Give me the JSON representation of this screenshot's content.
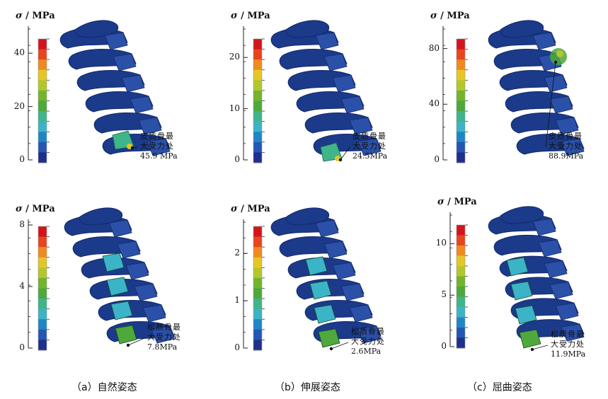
{
  "axis_label_prefix": "σ",
  "axis_label_unit": "/ MPa",
  "colors": {
    "colorbar": [
      "#1f2f8c",
      "#2356b5",
      "#1f86c6",
      "#3bb4c8",
      "#3fb58a",
      "#4ea83c",
      "#72b52b",
      "#b4c72a",
      "#e6c624",
      "#ef8a1e",
      "#e8451c",
      "#d4141c"
    ],
    "bone": "#1b3a8a",
    "bone_dark": "#132a6b"
  },
  "panels": [
    {
      "id": "a-top",
      "ticks": [
        "40",
        "20",
        "0"
      ],
      "tick_values": [
        40,
        20,
        0
      ],
      "max": 48,
      "annotation": {
        "line1": "皮质骨最",
        "line2": "大受力处",
        "value": "45.9 MPa"
      },
      "hotspot": "fan"
    },
    {
      "id": "b-top",
      "ticks": [
        "20",
        "10",
        "0"
      ],
      "tick_values": [
        20,
        10,
        0
      ],
      "max": 25,
      "annotation": {
        "line1": "皮质骨最",
        "line2": "大受力处",
        "value": "24.5MPa"
      },
      "hotspot": "fan"
    },
    {
      "id": "c-top",
      "ticks": [
        "80",
        "40",
        "0"
      ],
      "tick_values": [
        80,
        40,
        0
      ],
      "max": 92,
      "annotation": {
        "line1": "皮质骨最",
        "line2": "大受力处",
        "value": "88.9MPa"
      },
      "hotspot": "top"
    },
    {
      "id": "a-bottom",
      "ticks": [
        "8",
        "4",
        "0"
      ],
      "tick_values": [
        8,
        4,
        0
      ],
      "max": 8,
      "annotation": {
        "line1": "松质骨最",
        "line2": "大受力处",
        "value": "7.8MPa"
      },
      "hotspot": "mesh"
    },
    {
      "id": "b-bottom",
      "ticks": [
        "2",
        "1",
        "0"
      ],
      "tick_values": [
        2,
        1,
        0
      ],
      "max": 2.6,
      "annotation": {
        "line1": "松质骨最",
        "line2": "大受力处",
        "value": "2.6MPa"
      },
      "hotspot": "mesh"
    },
    {
      "id": "c-bottom",
      "ticks": [
        "10",
        "5",
        "0"
      ],
      "tick_values": [
        10,
        5,
        0
      ],
      "max": 12.5,
      "annotation": {
        "line1": "松质骨最",
        "line2": "大受力处",
        "value": "11.9MPa"
      },
      "hotspot": "mesh"
    }
  ],
  "captions": [
    "（a）自然姿态",
    "（b）伸展姿态",
    "（c）屈曲姿态"
  ]
}
